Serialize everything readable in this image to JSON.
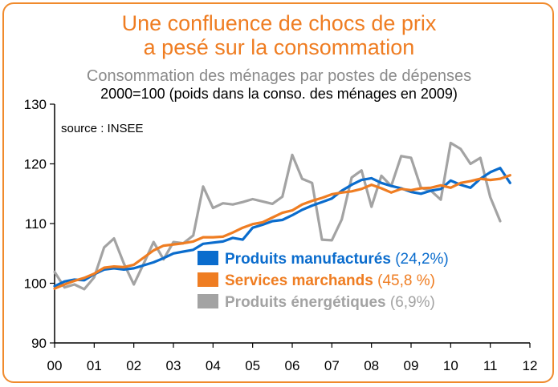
{
  "title_line1": "Une confluence de chocs de prix",
  "title_line2": "a pesé sur la consommation",
  "subtitle_line1": "Consommation des ménages par postes de dépenses",
  "subtitle_line2": "2000=100 (poids dans la conso. des ménages en 2009)",
  "source": "source : INSEE",
  "chart_data": {
    "type": "line",
    "title": "Consommation des ménages par postes de dépenses",
    "subtitle": "2000=100 (poids dans la conso. des ménages en 2009)",
    "xlabel": "",
    "ylabel": "",
    "xlim": [
      2000,
      2012
    ],
    "ylim": [
      90,
      130
    ],
    "yticks": [
      90,
      100,
      110,
      120,
      130
    ],
    "xticks": [
      2000,
      2001,
      2002,
      2003,
      2004,
      2005,
      2006,
      2007,
      2008,
      2009,
      2010,
      2011,
      2012
    ],
    "xtick_labels": [
      "00",
      "01",
      "02",
      "03",
      "04",
      "05",
      "06",
      "07",
      "08",
      "09",
      "10",
      "11",
      "12"
    ],
    "grid": false,
    "legend_position": "bottom-right",
    "series": [
      {
        "name": "Produits manufacturés",
        "pct": "(24,2%)",
        "color": "#0a6ccd",
        "points": [
          [
            2000.0,
            99.5
          ],
          [
            2000.25,
            100.3
          ],
          [
            2000.5,
            100.6
          ],
          [
            2000.75,
            100.5
          ],
          [
            2001.0,
            101.5
          ],
          [
            2001.25,
            102.3
          ],
          [
            2001.5,
            102.5
          ],
          [
            2001.75,
            102.3
          ],
          [
            2002.0,
            102.5
          ],
          [
            2002.25,
            103.0
          ],
          [
            2002.5,
            103.5
          ],
          [
            2002.75,
            104.2
          ],
          [
            2003.0,
            105.0
          ],
          [
            2003.25,
            105.3
          ],
          [
            2003.5,
            105.6
          ],
          [
            2003.75,
            106.6
          ],
          [
            2004.0,
            106.8
          ],
          [
            2004.25,
            107.0
          ],
          [
            2004.5,
            107.6
          ],
          [
            2004.75,
            107.3
          ],
          [
            2005.0,
            109.3
          ],
          [
            2005.25,
            109.8
          ],
          [
            2005.5,
            110.4
          ],
          [
            2005.75,
            110.6
          ],
          [
            2006.0,
            111.4
          ],
          [
            2006.25,
            112.3
          ],
          [
            2006.5,
            113.0
          ],
          [
            2006.75,
            113.6
          ],
          [
            2007.0,
            114.2
          ],
          [
            2007.25,
            115.5
          ],
          [
            2007.5,
            116.5
          ],
          [
            2007.75,
            117.3
          ],
          [
            2008.0,
            117.6
          ],
          [
            2008.25,
            116.8
          ],
          [
            2008.5,
            116.3
          ],
          [
            2008.75,
            115.9
          ],
          [
            2009.0,
            115.3
          ],
          [
            2009.25,
            115.0
          ],
          [
            2009.5,
            115.5
          ],
          [
            2009.75,
            115.8
          ],
          [
            2010.0,
            117.2
          ],
          [
            2010.25,
            116.5
          ],
          [
            2010.5,
            116.0
          ],
          [
            2010.75,
            117.5
          ],
          [
            2011.0,
            118.6
          ],
          [
            2011.25,
            119.3
          ],
          [
            2011.5,
            116.8
          ]
        ]
      },
      {
        "name": "Services marchands",
        "pct": "(45,8 %)",
        "color": "#ef7d22",
        "points": [
          [
            2000.0,
            99.1
          ],
          [
            2000.25,
            99.8
          ],
          [
            2000.5,
            100.4
          ],
          [
            2000.75,
            100.9
          ],
          [
            2001.0,
            101.6
          ],
          [
            2001.25,
            102.6
          ],
          [
            2001.5,
            102.8
          ],
          [
            2001.75,
            102.7
          ],
          [
            2002.0,
            103.1
          ],
          [
            2002.25,
            104.3
          ],
          [
            2002.5,
            105.5
          ],
          [
            2002.75,
            106.3
          ],
          [
            2003.0,
            106.5
          ],
          [
            2003.25,
            106.7
          ],
          [
            2003.5,
            107.0
          ],
          [
            2003.75,
            107.7
          ],
          [
            2004.0,
            107.7
          ],
          [
            2004.25,
            107.8
          ],
          [
            2004.5,
            108.5
          ],
          [
            2004.75,
            109.3
          ],
          [
            2005.0,
            109.9
          ],
          [
            2005.25,
            110.2
          ],
          [
            2005.5,
            111.0
          ],
          [
            2005.75,
            111.8
          ],
          [
            2006.0,
            112.2
          ],
          [
            2006.25,
            113.2
          ],
          [
            2006.5,
            113.8
          ],
          [
            2006.75,
            114.3
          ],
          [
            2007.0,
            114.9
          ],
          [
            2007.25,
            115.2
          ],
          [
            2007.5,
            115.4
          ],
          [
            2007.75,
            115.8
          ],
          [
            2008.0,
            116.5
          ],
          [
            2008.25,
            115.9
          ],
          [
            2008.5,
            115.2
          ],
          [
            2008.75,
            115.8
          ],
          [
            2009.0,
            115.6
          ],
          [
            2009.25,
            115.9
          ],
          [
            2009.5,
            116.0
          ],
          [
            2009.75,
            116.4
          ],
          [
            2010.0,
            116.0
          ],
          [
            2010.25,
            116.8
          ],
          [
            2010.5,
            117.1
          ],
          [
            2010.75,
            117.5
          ],
          [
            2011.0,
            117.3
          ],
          [
            2011.25,
            117.5
          ],
          [
            2011.5,
            118.1
          ]
        ]
      },
      {
        "name": "Produits énergétiques",
        "pct": "(6,9%)",
        "color": "#a3a3a3",
        "points": [
          [
            2000.0,
            101.9
          ],
          [
            2000.25,
            99.3
          ],
          [
            2000.5,
            99.8
          ],
          [
            2000.75,
            99.0
          ],
          [
            2001.0,
            101.0
          ],
          [
            2001.25,
            106.0
          ],
          [
            2001.5,
            107.5
          ],
          [
            2001.75,
            103.3
          ],
          [
            2002.0,
            99.8
          ],
          [
            2002.25,
            103.3
          ],
          [
            2002.5,
            106.9
          ],
          [
            2002.75,
            104.0
          ],
          [
            2003.0,
            106.9
          ],
          [
            2003.25,
            106.7
          ],
          [
            2003.5,
            108.0
          ],
          [
            2003.75,
            116.2
          ],
          [
            2004.0,
            112.6
          ],
          [
            2004.25,
            113.4
          ],
          [
            2004.5,
            113.2
          ],
          [
            2004.75,
            113.6
          ],
          [
            2005.0,
            114.1
          ],
          [
            2005.25,
            113.7
          ],
          [
            2005.5,
            113.3
          ],
          [
            2005.75,
            114.5
          ],
          [
            2006.0,
            121.5
          ],
          [
            2006.25,
            117.5
          ],
          [
            2006.5,
            116.8
          ],
          [
            2006.75,
            107.3
          ],
          [
            2007.0,
            107.2
          ],
          [
            2007.25,
            110.7
          ],
          [
            2007.5,
            117.7
          ],
          [
            2007.75,
            118.9
          ],
          [
            2008.0,
            112.8
          ],
          [
            2008.25,
            118.0
          ],
          [
            2008.5,
            116.3
          ],
          [
            2008.75,
            121.3
          ],
          [
            2009.0,
            121.0
          ],
          [
            2009.25,
            116.0
          ],
          [
            2009.5,
            115.5
          ],
          [
            2009.75,
            114.0
          ],
          [
            2010.0,
            123.5
          ],
          [
            2010.25,
            122.5
          ],
          [
            2010.5,
            120.0
          ],
          [
            2010.75,
            121.0
          ],
          [
            2011.0,
            114.4
          ],
          [
            2011.25,
            110.4
          ]
        ]
      }
    ]
  }
}
